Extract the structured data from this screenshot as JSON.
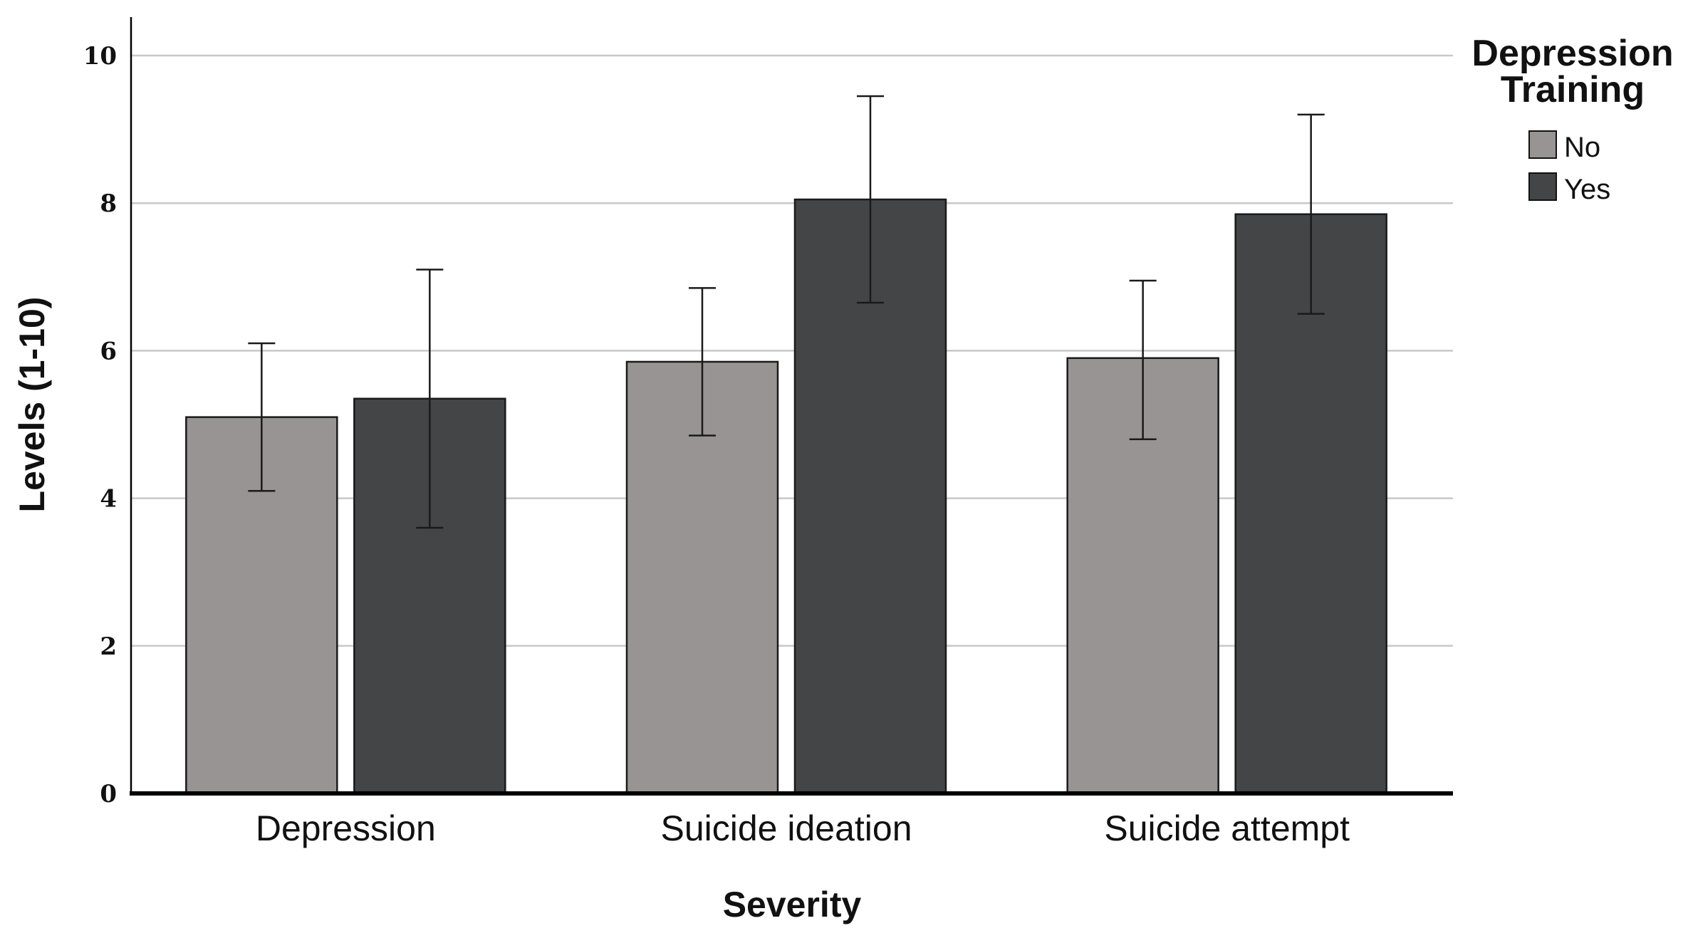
{
  "chart_data": {
    "type": "bar",
    "categories": [
      "Depression",
      "Suicide ideation",
      "Suicide attempt"
    ],
    "series": [
      {
        "name": "No",
        "color": "#979493",
        "values": [
          5.1,
          5.85,
          5.9
        ],
        "error_low": [
          4.1,
          4.85,
          4.8
        ],
        "error_high": [
          6.1,
          6.85,
          6.95
        ]
      },
      {
        "name": "Yes",
        "color": "#444546",
        "values": [
          5.35,
          8.05,
          7.85
        ],
        "error_low": [
          3.6,
          6.65,
          6.5
        ],
        "error_high": [
          7.1,
          9.45,
          9.2
        ]
      }
    ],
    "xlabel": "Severity",
    "ylabel": "Levels (1-10)",
    "ylim": [
      0,
      10
    ],
    "yticks": [
      0,
      2,
      4,
      6,
      8,
      10
    ],
    "ytick_labels": [
      "0",
      "2",
      "4",
      "6",
      "8",
      "10"
    ],
    "grid": true,
    "legend": {
      "title_lines": [
        "Depression",
        "Training"
      ],
      "placement": "top-right"
    }
  }
}
